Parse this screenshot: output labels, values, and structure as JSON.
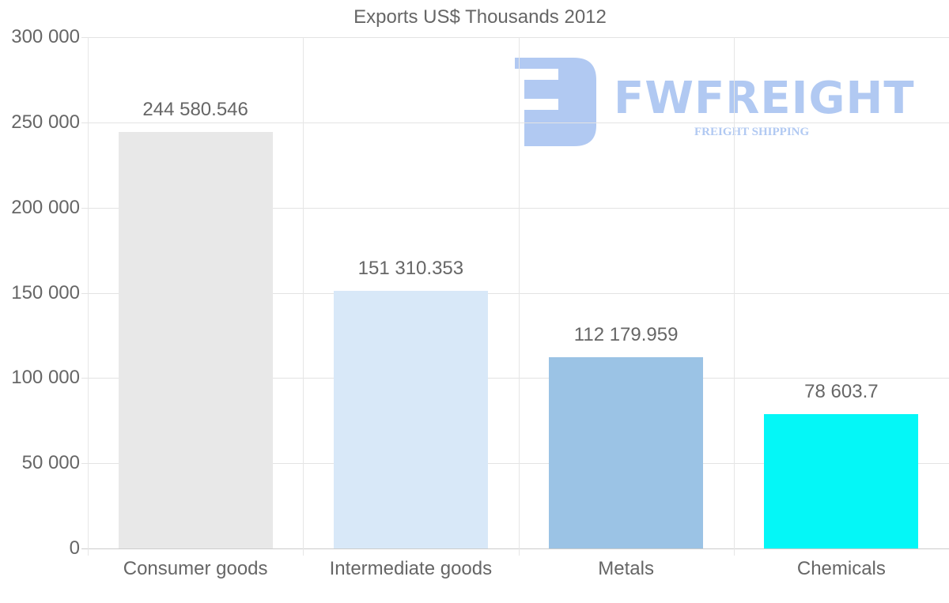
{
  "chart_data": {
    "type": "bar",
    "title": "Exports US$ Thousands 2012",
    "xlabel": "",
    "ylabel": "",
    "categories": [
      "Consumer goods",
      "Intermediate goods",
      "Metals",
      "Chemicals"
    ],
    "values": [
      244580.546,
      151310.353,
      112179.959,
      78603.7
    ],
    "value_labels": [
      "244 580.546",
      "151 310.353",
      "112 179.959",
      "78 603.7"
    ],
    "colors": [
      "#e8e8e8",
      "#d8e8f8",
      "#9bc3e5",
      "#04f7f7"
    ],
    "ylim": [
      0,
      300000
    ],
    "yticks": [
      0,
      50000,
      100000,
      150000,
      200000,
      250000,
      300000
    ],
    "ytick_labels": [
      "0",
      "50 000",
      "100 000",
      "150 000",
      "200 000",
      "250 000",
      "300 000"
    ],
    "grid": true,
    "legend": null
  },
  "watermark": {
    "brand": "FWFREIGHT",
    "tagline": "FREIGHT SHIPPING",
    "color": "#b1c9f2"
  }
}
